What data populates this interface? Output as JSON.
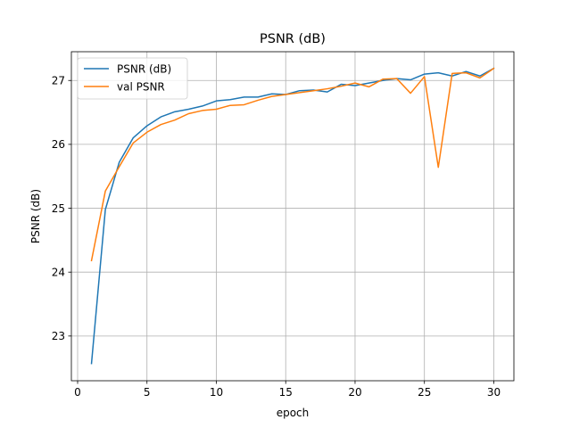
{
  "chart_data": {
    "type": "line",
    "title": "PSNR (dB)",
    "xlabel": "epoch",
    "ylabel": "PSNR (dB)",
    "xlim": [
      -0.45,
      31.45
    ],
    "ylim": [
      22.3,
      27.45
    ],
    "xticks": [
      0,
      5,
      10,
      15,
      20,
      25,
      30
    ],
    "yticks": [
      23,
      24,
      25,
      26,
      27
    ],
    "grid": true,
    "legend_position": "top-left",
    "x": [
      1,
      2,
      3,
      4,
      5,
      6,
      7,
      8,
      9,
      10,
      11,
      12,
      13,
      14,
      15,
      16,
      17,
      18,
      19,
      20,
      21,
      22,
      23,
      24,
      25,
      26,
      27,
      28,
      29,
      30
    ],
    "series": [
      {
        "name": "PSNR (dB)",
        "color": "#1f77b4",
        "values": [
          22.57,
          24.98,
          25.72,
          26.1,
          26.29,
          26.43,
          26.51,
          26.55,
          26.6,
          26.68,
          26.7,
          26.74,
          26.74,
          26.79,
          26.78,
          26.84,
          26.85,
          26.82,
          26.94,
          26.92,
          26.96,
          27.0,
          27.03,
          27.01,
          27.1,
          27.12,
          27.07,
          27.14,
          27.07,
          27.19
        ]
      },
      {
        "name": "val PSNR",
        "color": "#ff7f0e",
        "values": [
          24.18,
          25.27,
          25.65,
          26.02,
          26.19,
          26.31,
          26.38,
          26.48,
          26.53,
          26.55,
          26.61,
          26.62,
          26.69,
          26.75,
          26.78,
          26.81,
          26.84,
          26.87,
          26.91,
          26.96,
          26.9,
          27.02,
          27.03,
          26.8,
          27.06,
          25.64,
          27.11,
          27.12,
          27.04,
          27.19
        ]
      }
    ]
  }
}
